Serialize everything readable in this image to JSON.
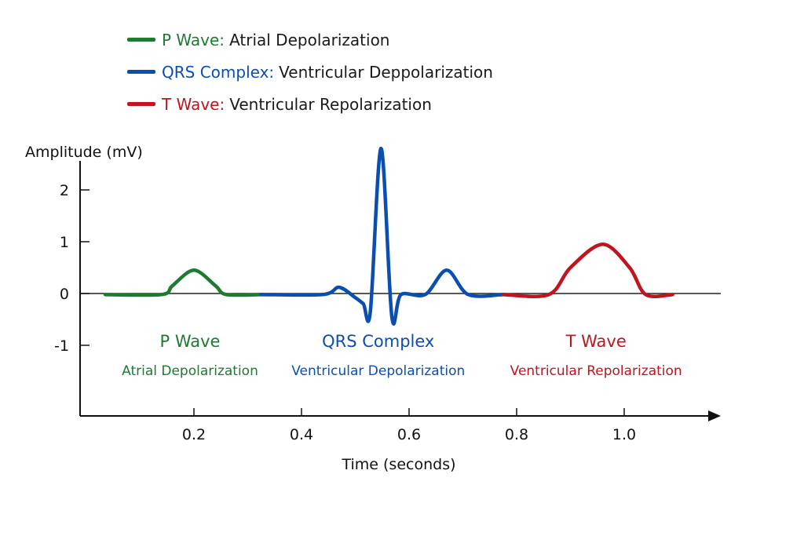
{
  "chart_data": {
    "type": "line",
    "title": "",
    "xlabel": "Time (seconds)",
    "ylabel": "Amplitude (mV)",
    "xlim": [
      0,
      1.18
    ],
    "ylim": [
      -2.3,
      2.8
    ],
    "xticks": [
      0.2,
      0.4,
      0.6,
      0.8,
      1.0
    ],
    "xtick_labels": [
      "0.2",
      "0.4",
      "0.6",
      "0.8",
      "1.0"
    ],
    "yticks": [
      2,
      1,
      0,
      -1
    ],
    "ytick_labels": [
      "2",
      "1",
      "0",
      "-1"
    ],
    "grid": false,
    "legend_position": "top",
    "legend": [
      {
        "name": "P Wave:",
        "desc": "Atrial Depolarization",
        "color": "#1e7a32"
      },
      {
        "name": "QRS Complex:",
        "desc": "Ventricular Deppolarization",
        "color": "#0a4fb0"
      },
      {
        "name": "T Wave:",
        "desc": "Ventricular Repolarization",
        "color": "#c0141e"
      }
    ],
    "series": [
      {
        "name": "P Wave",
        "color": "#1e7a32",
        "points": [
          [
            0.035,
            -0.02
          ],
          [
            0.14,
            -0.02
          ],
          [
            0.16,
            0.15
          ],
          [
            0.2,
            0.45
          ],
          [
            0.24,
            0.15
          ],
          [
            0.26,
            -0.02
          ],
          [
            0.325,
            -0.02
          ]
        ]
      },
      {
        "name": "QRS Complex",
        "color": "#0a4fb0",
        "points": [
          [
            0.325,
            -0.02
          ],
          [
            0.44,
            -0.02
          ],
          [
            0.47,
            0.12
          ],
          [
            0.5,
            -0.08
          ],
          [
            0.515,
            -0.2
          ],
          [
            0.528,
            -0.35
          ],
          [
            0.548,
            2.8
          ],
          [
            0.568,
            -0.45
          ],
          [
            0.585,
            -0.02
          ],
          [
            0.63,
            -0.02
          ],
          [
            0.67,
            0.45
          ],
          [
            0.71,
            -0.02
          ],
          [
            0.775,
            -0.02
          ]
        ]
      },
      {
        "name": "T Wave",
        "color": "#c0141e",
        "points": [
          [
            0.775,
            -0.02
          ],
          [
            0.86,
            -0.02
          ],
          [
            0.9,
            0.5
          ],
          [
            0.96,
            0.95
          ],
          [
            1.01,
            0.5
          ],
          [
            1.04,
            -0.02
          ],
          [
            1.09,
            -0.02
          ]
        ]
      }
    ],
    "annotations": [
      {
        "title": "P Wave",
        "subtitle": "Atrial Depolarization",
        "color": "#1e7a32",
        "x": 0.2
      },
      {
        "title": "QRS Complex",
        "subtitle": "Ventricular Depolarization",
        "color": "#0a4fb0",
        "x": 0.55
      },
      {
        "title": "T Wave",
        "subtitle": "Ventricular Repolarization",
        "color": "#c0141e",
        "x": 0.955
      }
    ]
  }
}
